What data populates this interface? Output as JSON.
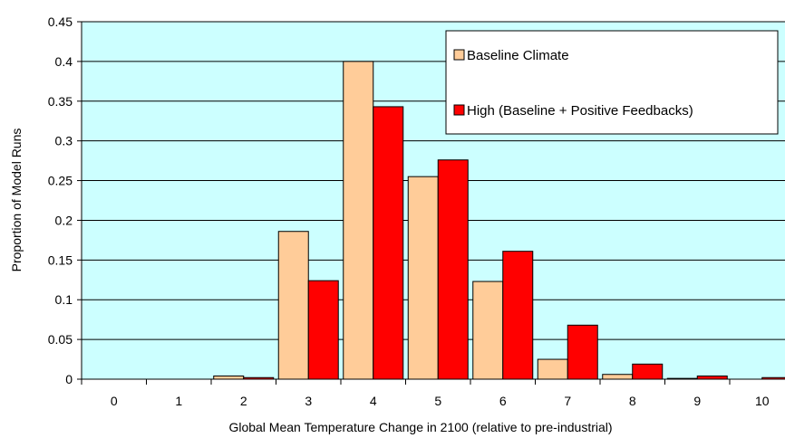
{
  "chart_data": {
    "type": "bar",
    "title": "",
    "xlabel": "Global Mean Temperature Change in 2100 (relative to pre-industrial)",
    "ylabel": "Proportion of Model Runs",
    "categories": [
      "0",
      "1",
      "2",
      "3",
      "4",
      "5",
      "6",
      "7",
      "8",
      "9",
      "10"
    ],
    "ylim": [
      0,
      0.45
    ],
    "yticks": [
      "0",
      "0.05",
      "0.1",
      "0.15",
      "0.2",
      "0.25",
      "0.3",
      "0.35",
      "0.4",
      "0.45"
    ],
    "grid": true,
    "legend_position": "top-right",
    "plot_background": "#ccffff",
    "series": [
      {
        "name": "Baseline Climate",
        "color": "#ffcc99",
        "values": [
          0,
          0,
          0.004,
          0.186,
          0.4,
          0.255,
          0.123,
          0.025,
          0.006,
          0.001,
          0
        ]
      },
      {
        "name": "High (Baseline + Positive Feedbacks)",
        "color": "#ff0000",
        "values": [
          0,
          0,
          0.002,
          0.124,
          0.343,
          0.276,
          0.161,
          0.068,
          0.019,
          0.004,
          0.002
        ]
      }
    ]
  }
}
